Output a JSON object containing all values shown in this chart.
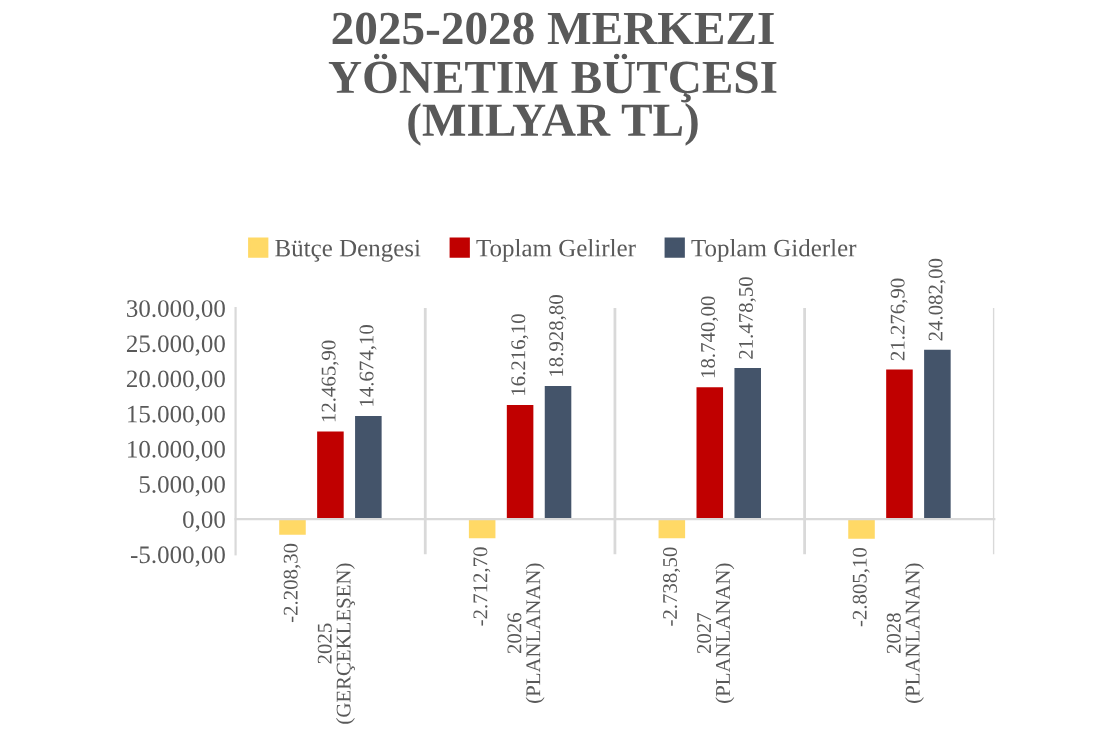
{
  "chart_data": {
    "type": "bar",
    "title": "2025-2028 MERKEZI\nYÖNETIM BÜTÇESI\n(MILYAR TL)",
    "categories": [
      "2025\n(GERÇEKLEŞEN)",
      "2026\n(PLANLANAN)",
      "2027\n(PLANLANAN)",
      "2028\n(PLANLANAN)"
    ],
    "series": [
      {
        "name": "Bütçe Dengesi",
        "color": "#ffd966",
        "values": [
          -2208.3,
          -2712.7,
          -2738.5,
          -2805.1
        ],
        "value_labels": [
          "-2.208,30",
          "-2.712,70",
          "-2.738,50",
          "-2.805,10"
        ]
      },
      {
        "name": "Toplam Gelirler",
        "color": "#c00000",
        "values": [
          12465.9,
          16216.1,
          18740.0,
          21276.9
        ],
        "value_labels": [
          "12.465,90",
          "16.216,10",
          "18.740,00",
          "21.276,90"
        ]
      },
      {
        "name": "Toplam Giderler",
        "color": "#44546a",
        "values": [
          14674.1,
          18928.8,
          21478.5,
          24082.0
        ],
        "value_labels": [
          "14.674,10",
          "18.928,80",
          "21.478,50",
          "24.082,00"
        ]
      }
    ],
    "ylim": [
      -5000,
      30000
    ],
    "yticks": [
      {
        "value": -5000,
        "label": "-5.000,00"
      },
      {
        "value": 0,
        "label": "0,00"
      },
      {
        "value": 5000,
        "label": "5.000,00"
      },
      {
        "value": 10000,
        "label": "10.000,00"
      },
      {
        "value": 15000,
        "label": "15.000,00"
      },
      {
        "value": 20000,
        "label": "20.000,00"
      },
      {
        "value": 25000,
        "label": "25.000,00"
      },
      {
        "value": 30000,
        "label": "30.000,00"
      }
    ],
    "grid": "x",
    "legend": "top"
  }
}
